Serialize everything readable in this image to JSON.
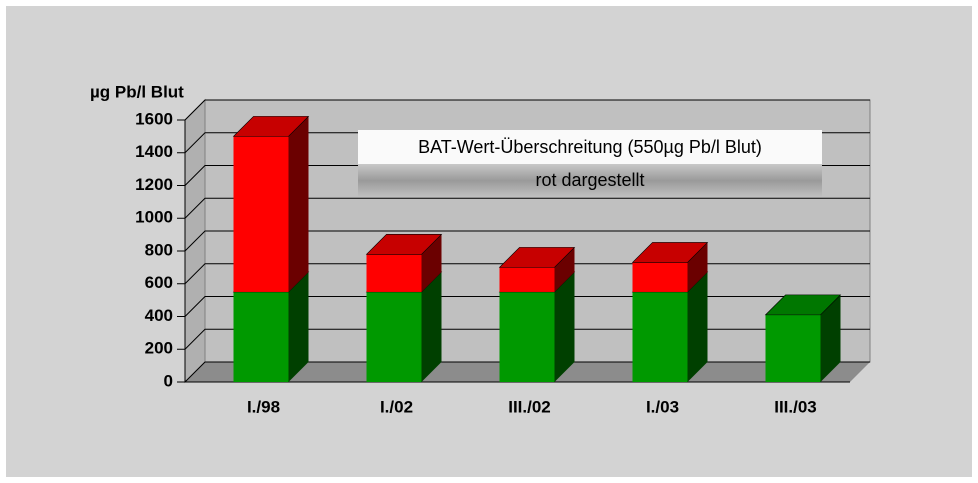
{
  "chart_data": {
    "type": "bar3d_stacked",
    "y_label": "µg Pb/l Blut",
    "annotation": {
      "line1": "BAT-Wert-Überschreitung (550µg Pb/l Blut)",
      "line2": "rot dargestellt"
    },
    "categories": [
      "I./98",
      "I./02",
      "III./02",
      "I./03",
      "III./03"
    ],
    "series": [
      {
        "color": "#009900",
        "values": [
          550,
          550,
          550,
          550,
          410
        ]
      },
      {
        "color": "#ff0000",
        "values": [
          950,
          230,
          150,
          180,
          0
        ]
      }
    ],
    "ylim": [
      0,
      1600
    ],
    "yticks": [
      0,
      200,
      400,
      600,
      800,
      1000,
      1200,
      1400,
      1600
    ],
    "grid": true
  }
}
